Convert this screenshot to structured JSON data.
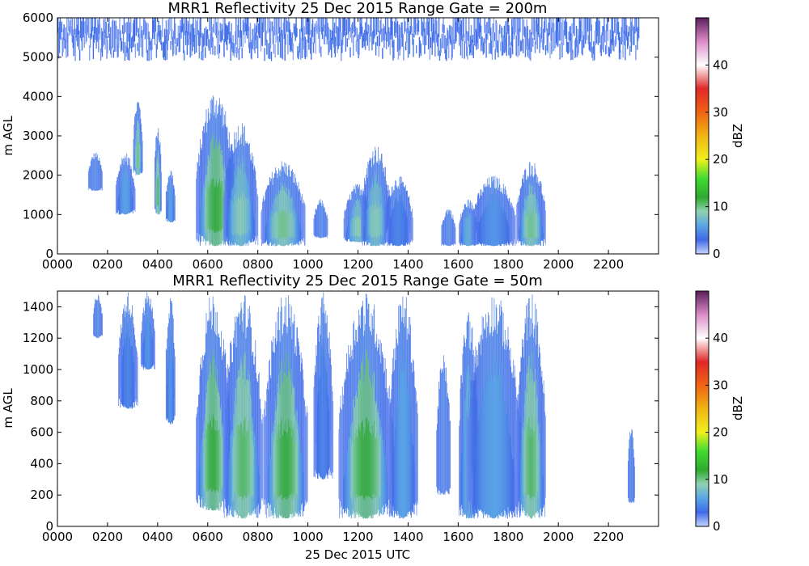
{
  "chart_data": [
    {
      "type": "heatmap",
      "title": "MRR1 Reflectivity 25 Dec 2015 Range Gate = 200m",
      "xlabel": "",
      "ylabel": "m AGL",
      "xlim": [
        0,
        2400
      ],
      "ylim": [
        0,
        6000
      ],
      "x_ticks": [
        0,
        200,
        400,
        600,
        800,
        1000,
        1200,
        1400,
        1600,
        1800,
        2000,
        2200
      ],
      "x_tick_labels": [
        "0000",
        "0200",
        "0400",
        "0600",
        "0800",
        "1000",
        "1200",
        "1400",
        "1600",
        "1800",
        "2000",
        "2200"
      ],
      "y_ticks": [
        0,
        1000,
        2000,
        3000,
        4000,
        5000,
        6000
      ],
      "y_tick_labels": [
        "0",
        "1000",
        "2000",
        "3000",
        "4000",
        "5000",
        "6000"
      ],
      "colorbar": {
        "label": "dBZ",
        "range": [
          0,
          50
        ],
        "ticks": [
          0,
          10,
          20,
          30,
          40
        ],
        "tick_labels": [
          "0",
          "10",
          "20",
          "30",
          "40"
        ]
      },
      "noise_band": {
        "time_start": 0,
        "time_end": 2320,
        "z_min": 4900,
        "z_max": 6000,
        "dbz_max": 3
      },
      "echoes": [
        {
          "time": 150,
          "width": 30,
          "z_base": 1600,
          "z_top": 2600,
          "dbz_max": 4
        },
        {
          "time": 270,
          "width": 40,
          "z_base": 1000,
          "z_top": 2600,
          "dbz_max": 7
        },
        {
          "time": 320,
          "width": 20,
          "z_base": 2000,
          "z_top": 4000,
          "dbz_max": 10
        },
        {
          "time": 400,
          "width": 15,
          "z_base": 1000,
          "z_top": 3400,
          "dbz_max": 11
        },
        {
          "time": 450,
          "width": 20,
          "z_base": 800,
          "z_top": 2200,
          "dbz_max": 7
        },
        {
          "time": 630,
          "width": 80,
          "z_base": 200,
          "z_top": 4200,
          "dbz_max": 12
        },
        {
          "time": 730,
          "width": 70,
          "z_base": 200,
          "z_top": 3400,
          "dbz_max": 9
        },
        {
          "time": 900,
          "width": 90,
          "z_base": 200,
          "z_top": 2400,
          "dbz_max": 10
        },
        {
          "time": 1050,
          "width": 30,
          "z_base": 400,
          "z_top": 1400,
          "dbz_max": 4
        },
        {
          "time": 1200,
          "width": 60,
          "z_base": 300,
          "z_top": 1800,
          "dbz_max": 9
        },
        {
          "time": 1270,
          "width": 60,
          "z_base": 200,
          "z_top": 2800,
          "dbz_max": 9
        },
        {
          "time": 1360,
          "width": 60,
          "z_base": 200,
          "z_top": 2000,
          "dbz_max": 5
        },
        {
          "time": 1560,
          "width": 30,
          "z_base": 200,
          "z_top": 1200,
          "dbz_max": 3
        },
        {
          "time": 1640,
          "width": 40,
          "z_base": 200,
          "z_top": 1400,
          "dbz_max": 8
        },
        {
          "time": 1740,
          "width": 90,
          "z_base": 200,
          "z_top": 2000,
          "dbz_max": 6
        },
        {
          "time": 1890,
          "width": 60,
          "z_base": 200,
          "z_top": 2400,
          "dbz_max": 10
        }
      ]
    },
    {
      "type": "heatmap",
      "title": "MRR1 Reflectivity 25 Dec 2015 Range Gate = 50m",
      "xlabel": "25 Dec 2015 UTC",
      "ylabel": "m AGL",
      "xlim": [
        0,
        2400
      ],
      "ylim": [
        0,
        1500
      ],
      "x_ticks": [
        0,
        200,
        400,
        600,
        800,
        1000,
        1200,
        1400,
        1600,
        1800,
        2000,
        2200
      ],
      "x_tick_labels": [
        "0000",
        "0200",
        "0400",
        "0600",
        "0800",
        "1000",
        "1200",
        "1400",
        "1600",
        "1800",
        "2000",
        "2200"
      ],
      "y_ticks": [
        0,
        200,
        400,
        600,
        800,
        1000,
        1200,
        1400
      ],
      "y_tick_labels": [
        "0",
        "200",
        "400",
        "600",
        "800",
        "1000",
        "1200",
        "1400"
      ],
      "colorbar": {
        "label": "dBZ",
        "range": [
          0,
          50
        ],
        "ticks": [
          0,
          10,
          20,
          30,
          40
        ],
        "tick_labels": [
          "0",
          "10",
          "20",
          "30",
          "40"
        ]
      },
      "echoes": [
        {
          "time": 160,
          "width": 20,
          "z_base": 1200,
          "z_top": 1500,
          "dbz_max": 3
        },
        {
          "time": 280,
          "width": 40,
          "z_base": 750,
          "z_top": 1500,
          "dbz_max": 5
        },
        {
          "time": 360,
          "width": 30,
          "z_base": 1000,
          "z_top": 1500,
          "dbz_max": 6
        },
        {
          "time": 450,
          "width": 20,
          "z_base": 650,
          "z_top": 1500,
          "dbz_max": 6
        },
        {
          "time": 620,
          "width": 70,
          "z_base": 100,
          "z_top": 1500,
          "dbz_max": 12
        },
        {
          "time": 740,
          "width": 80,
          "z_base": 50,
          "z_top": 1500,
          "dbz_max": 11
        },
        {
          "time": 910,
          "width": 90,
          "z_base": 50,
          "z_top": 1500,
          "dbz_max": 12
        },
        {
          "time": 1060,
          "width": 40,
          "z_base": 300,
          "z_top": 1500,
          "dbz_max": 5
        },
        {
          "time": 1230,
          "width": 110,
          "z_base": 50,
          "z_top": 1500,
          "dbz_max": 12
        },
        {
          "time": 1380,
          "width": 60,
          "z_base": 50,
          "z_top": 1500,
          "dbz_max": 7
        },
        {
          "time": 1540,
          "width": 30,
          "z_base": 200,
          "z_top": 1100,
          "dbz_max": 3
        },
        {
          "time": 1640,
          "width": 40,
          "z_base": 50,
          "z_top": 1400,
          "dbz_max": 8
        },
        {
          "time": 1740,
          "width": 110,
          "z_base": 50,
          "z_top": 1500,
          "dbz_max": 7
        },
        {
          "time": 1890,
          "width": 60,
          "z_base": 50,
          "z_top": 1500,
          "dbz_max": 11
        },
        {
          "time": 2290,
          "width": 15,
          "z_base": 150,
          "z_top": 650,
          "dbz_max": 3
        }
      ]
    }
  ],
  "colors": {
    "frame": "#000000",
    "colormap": [
      {
        "dbz": 0,
        "color": "#c6d5ff"
      },
      {
        "dbz": 3,
        "color": "#3f6ae8"
      },
      {
        "dbz": 6,
        "color": "#5aa6e6"
      },
      {
        "dbz": 9,
        "color": "#8fd1b0"
      },
      {
        "dbz": 12,
        "color": "#2faa2f"
      },
      {
        "dbz": 16,
        "color": "#3fdc2f"
      },
      {
        "dbz": 20,
        "color": "#f0f01e"
      },
      {
        "dbz": 25,
        "color": "#f0b414"
      },
      {
        "dbz": 30,
        "color": "#f06414"
      },
      {
        "dbz": 35,
        "color": "#e02828"
      },
      {
        "dbz": 40,
        "color": "#ffffff"
      },
      {
        "dbz": 45,
        "color": "#dc8cc8"
      },
      {
        "dbz": 50,
        "color": "#5a1e5a"
      }
    ]
  }
}
